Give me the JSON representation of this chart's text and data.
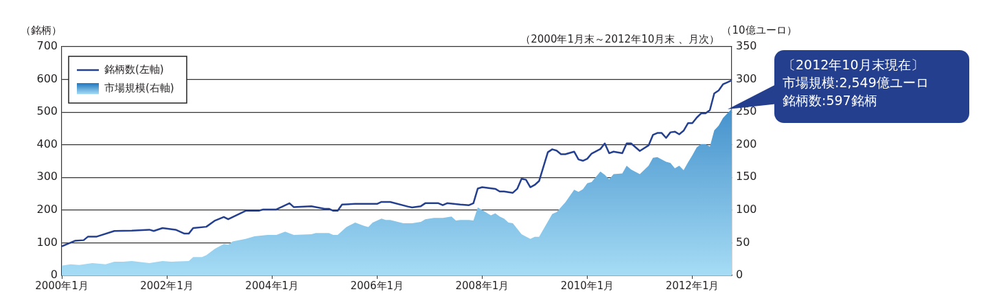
{
  "chart_data": {
    "type": "line",
    "subtitle": "（2000年1月末～2012年10月末 、月次）",
    "ylabel": "（銘柄）",
    "y2label": "（10億ユーロ）",
    "annotations": [
      "〔2012年10月末現在〕",
      "市場規模:2,549億ユーロ",
      "銘柄数:597銘柄"
    ],
    "xlim": [
      "2000-01",
      "2012-10"
    ],
    "xticks": [
      {
        "value": "2000-01",
        "label": "2000年1月"
      },
      {
        "value": "2002-01",
        "label": "2002年1月"
      },
      {
        "value": "2004-01",
        "label": "2004年1月"
      },
      {
        "value": "2006-01",
        "label": "2006年1月"
      },
      {
        "value": "2008-01",
        "label": "2008年1月"
      },
      {
        "value": "2010-01",
        "label": "2010年1月"
      },
      {
        "value": "2012-01",
        "label": "2012年1月"
      }
    ],
    "ylim": [
      0,
      700
    ],
    "yticks": [
      0,
      100,
      200,
      300,
      400,
      500,
      600,
      700
    ],
    "y2lim": [
      0,
      350
    ],
    "y2ticks": [
      0,
      50,
      100,
      150,
      200,
      250,
      300,
      350
    ],
    "grid": "y",
    "legend": "top left",
    "series": [
      {
        "name": "市場規模(右軸)",
        "type": "area",
        "axis": "y2",
        "color": "#6aa8dc",
        "x": [
          "2000-01",
          "2000-03",
          "2000-05",
          "2000-08",
          "2000-11",
          "2001-01",
          "2001-03",
          "2001-05",
          "2001-09",
          "2001-12",
          "2002-02",
          "2002-06",
          "2002-07",
          "2002-09",
          "2002-10",
          "2002-12",
          "2003-02",
          "2003-03",
          "2003-04",
          "2003-07",
          "2003-09",
          "2003-12",
          "2004-02",
          "2004-04",
          "2004-06",
          "2004-10",
          "2004-11",
          "2005-02",
          "2005-03",
          "2005-04",
          "2005-06",
          "2005-08",
          "2005-10",
          "2005-11",
          "2005-12",
          "2006-02",
          "2006-03",
          "2006-04",
          "2006-07",
          "2006-09",
          "2006-11",
          "2006-12",
          "2007-02",
          "2007-04",
          "2007-06",
          "2007-07",
          "2007-08",
          "2007-10",
          "2007-11",
          "2007-12",
          "2008-03",
          "2008-04",
          "2008-05",
          "2008-06",
          "2008-07",
          "2008-08",
          "2008-10",
          "2008-12",
          "2009-01",
          "2009-02",
          "2009-05",
          "2009-06",
          "2009-08",
          "2009-10",
          "2009-11",
          "2009-12",
          "2010-01",
          "2010-02",
          "2010-04",
          "2010-05",
          "2010-06",
          "2010-07",
          "2010-09",
          "2010-10",
          "2010-11",
          "2011-01",
          "2011-03",
          "2011-04",
          "2011-05",
          "2011-07",
          "2011-08",
          "2011-09",
          "2011-10",
          "2011-11",
          "2011-12",
          "2012-01",
          "2012-02",
          "2012-03",
          "2012-04",
          "2012-05",
          "2012-06",
          "2012-07",
          "2012-08",
          "2012-09",
          "2012-10"
        ],
        "values": [
          15,
          17,
          16,
          19,
          17,
          21,
          21,
          22,
          19,
          22,
          21,
          22,
          28,
          28,
          31,
          41,
          48,
          47,
          52,
          56,
          60,
          62,
          62,
          67,
          62,
          63,
          65,
          65,
          62,
          62,
          74,
          81,
          76,
          74,
          81,
          87,
          85,
          85,
          80,
          80,
          82,
          86,
          88,
          88,
          90,
          84,
          85,
          85,
          84,
          104,
          92,
          95,
          90,
          87,
          81,
          80,
          63,
          56,
          59,
          59,
          94,
          97,
          112,
          131,
          128,
          132,
          141,
          143,
          159,
          154,
          147,
          155,
          156,
          168,
          162,
          155,
          168,
          180,
          181,
          174,
          172,
          164,
          168,
          161,
          173,
          184,
          196,
          201,
          201,
          197,
          222,
          229,
          241,
          248,
          255
        ]
      },
      {
        "name": "銘柄数(左軸)",
        "type": "line",
        "axis": "y",
        "color": "#233f8e",
        "x": [
          "2000-01",
          "2000-04",
          "2000-06",
          "2000-07",
          "2000-09",
          "2001-01",
          "2001-05",
          "2001-09",
          "2001-10",
          "2001-12",
          "2002-03",
          "2002-05",
          "2002-06",
          "2002-07",
          "2002-10",
          "2002-12",
          "2003-02",
          "2003-03",
          "2003-07",
          "2003-10",
          "2003-11",
          "2004-02",
          "2004-05",
          "2004-06",
          "2004-10",
          "2005-01",
          "2005-02",
          "2005-03",
          "2005-04",
          "2005-05",
          "2005-08",
          "2006-01",
          "2006-02",
          "2006-04",
          "2006-08",
          "2006-09",
          "2006-11",
          "2006-12",
          "2007-03",
          "2007-04",
          "2007-05",
          "2007-08",
          "2007-10",
          "2007-11",
          "2007-12",
          "2008-01",
          "2008-04",
          "2008-05",
          "2008-06",
          "2008-08",
          "2008-09",
          "2008-10",
          "2008-11",
          "2008-12",
          "2009-01",
          "2009-02",
          "2009-04",
          "2009-05",
          "2009-06",
          "2009-07",
          "2009-08",
          "2009-10",
          "2009-11",
          "2009-12",
          "2010-01",
          "2010-02",
          "2010-04",
          "2010-05",
          "2010-06",
          "2010-07",
          "2010-09",
          "2010-10",
          "2010-11",
          "2011-01",
          "2011-03",
          "2011-04",
          "2011-05",
          "2011-06",
          "2011-07",
          "2011-08",
          "2011-09",
          "2011-10",
          "2011-11",
          "2011-12",
          "2012-01",
          "2012-02",
          "2012-03",
          "2012-04",
          "2012-05",
          "2012-06",
          "2012-07",
          "2012-08",
          "2012-09",
          "2012-10"
        ],
        "values": [
          89,
          106,
          108,
          119,
          119,
          136,
          137,
          140,
          136,
          145,
          140,
          128,
          128,
          145,
          149,
          168,
          179,
          172,
          198,
          198,
          202,
          202,
          221,
          209,
          212,
          204,
          204,
          198,
          198,
          217,
          219,
          219,
          225,
          225,
          211,
          208,
          212,
          221,
          221,
          215,
          221,
          217,
          215,
          221,
          266,
          270,
          265,
          257,
          257,
          253,
          265,
          296,
          293,
          270,
          277,
          289,
          377,
          386,
          382,
          371,
          371,
          379,
          355,
          351,
          357,
          373,
          387,
          404,
          374,
          379,
          374,
          404,
          404,
          381,
          398,
          430,
          436,
          436,
          421,
          438,
          440,
          432,
          443,
          466,
          466,
          483,
          496,
          496,
          506,
          557,
          566,
          585,
          591,
          597
        ]
      }
    ]
  }
}
